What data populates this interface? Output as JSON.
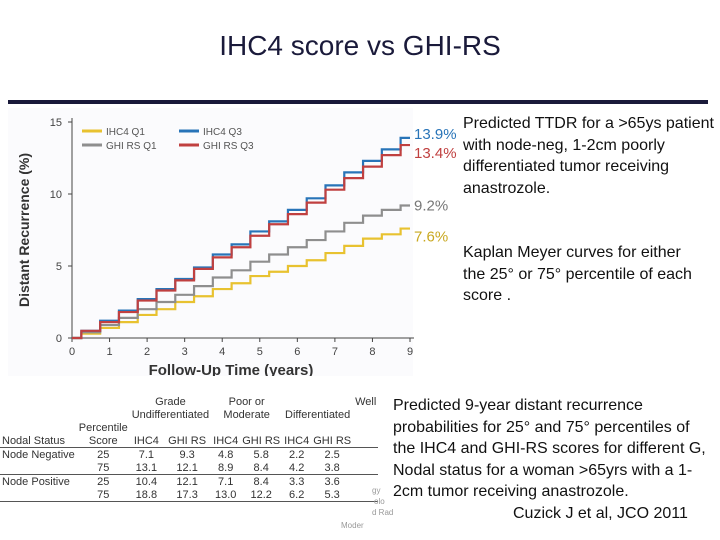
{
  "slide": {
    "title": "IHC4 score vs GHI-RS",
    "predicted_text": "Predicted TTDR for a >65ys patient with node-neg, 1-2cm poorly differentiated tumor receiving anastrozole.",
    "kaplan_text": "Kaplan Meyer curves for either the 25° or 75° percentile of each score .",
    "bottom_text": "Predicted 9-year distant recurrence probabilities for 25° and 75° percentiles of the IHC4 and GHI-RS scores for different G, Nodal status for a woman >65yrs with a 1-2cm tumor receiving anastrozole.",
    "citation": "Cuzick J et al, JCO 2011"
  },
  "chart_data": {
    "type": "line",
    "xlabel": "Follow-Up Time (years)",
    "ylabel": "Distant Recurrence (%)",
    "xlim": [
      0,
      9
    ],
    "ylim": [
      0,
      15
    ],
    "xticks": [
      0,
      1,
      2,
      3,
      4,
      5,
      6,
      7,
      8,
      9
    ],
    "yticks": [
      0,
      5,
      10,
      15
    ],
    "legend": {
      "placement": "top-left"
    },
    "series": [
      {
        "name": "IHC4 Q1",
        "color": "#e8c230",
        "x": [
          0,
          0.5,
          1,
          1.5,
          2,
          2.5,
          3,
          3.5,
          4,
          4.5,
          5,
          5.5,
          6,
          6.5,
          7,
          7.5,
          8,
          8.5,
          9
        ],
        "y": [
          0,
          0.3,
          0.7,
          1.1,
          1.6,
          2.0,
          2.5,
          2.9,
          3.4,
          3.8,
          4.3,
          4.6,
          5.0,
          5.4,
          5.9,
          6.4,
          6.9,
          7.2,
          7.6
        ]
      },
      {
        "name": "GHI RS Q1",
        "color": "#8e8e8e",
        "x": [
          0,
          0.5,
          1,
          1.5,
          2,
          2.5,
          3,
          3.5,
          4,
          4.5,
          5,
          5.5,
          6,
          6.5,
          7,
          7.5,
          8,
          8.5,
          9
        ],
        "y": [
          0,
          0.4,
          0.9,
          1.4,
          2.0,
          2.5,
          3.0,
          3.6,
          4.2,
          4.7,
          5.3,
          5.8,
          6.3,
          6.8,
          7.4,
          8.0,
          8.5,
          8.9,
          9.2
        ]
      },
      {
        "name": "IHC4 Q3",
        "color": "#2874b8",
        "x": [
          0,
          0.5,
          1,
          1.5,
          2,
          2.5,
          3,
          3.5,
          4,
          4.5,
          5,
          5.5,
          6,
          6.5,
          7,
          7.5,
          8,
          8.5,
          9
        ],
        "y": [
          0,
          0.5,
          1.2,
          1.9,
          2.7,
          3.4,
          4.1,
          4.9,
          5.8,
          6.5,
          7.4,
          8.1,
          8.9,
          9.7,
          10.6,
          11.5,
          12.3,
          13.1,
          13.9
        ]
      },
      {
        "name": "GHI RS Q3",
        "color": "#c04040",
        "x": [
          0,
          0.5,
          1,
          1.5,
          2,
          2.5,
          3,
          3.5,
          4,
          4.5,
          5,
          5.5,
          6,
          6.5,
          7,
          7.5,
          8,
          8.5,
          9
        ],
        "y": [
          0,
          0.5,
          1.1,
          1.8,
          2.6,
          3.3,
          4.0,
          4.8,
          5.6,
          6.3,
          7.1,
          7.9,
          8.6,
          9.4,
          10.3,
          11.1,
          11.9,
          12.7,
          13.4
        ]
      }
    ],
    "end_labels": [
      {
        "text": "13.9%",
        "color": "#2874b8",
        "y": 13.9
      },
      {
        "text": "13.4%",
        "color": "#c04040",
        "y": 13.4
      },
      {
        "text": "9.2%",
        "color": "#777777",
        "y": 9.2
      },
      {
        "text": "7.6%",
        "color": "#c9a820",
        "y": 7.6
      }
    ]
  },
  "table": {
    "header": {
      "grade": "Grade",
      "poor": [
        "Poor or",
        "Undifferentiated"
      ],
      "moderate": "Moderate",
      "well": [
        "Well",
        "Differentiated"
      ],
      "percentile": [
        "Percentile",
        "Score"
      ],
      "nodal": "Nodal Status",
      "cols": [
        "IHC4",
        "GHI RS",
        "IHC4",
        "GHI RS",
        "IHC4",
        "GHI RS"
      ]
    },
    "groups": [
      {
        "label": "Node Negative",
        "rows": [
          {
            "pct": "25",
            "vals": [
              "7.1",
              "9.3",
              "4.8",
              "5.8",
              "2.2",
              "2.5"
            ]
          },
          {
            "pct": "75",
            "vals": [
              "13.1",
              "12.1",
              "8.9",
              "8.4",
              "4.2",
              "3.8"
            ]
          }
        ]
      },
      {
        "label": "Node Positive",
        "rows": [
          {
            "pct": "25",
            "vals": [
              "10.4",
              "12.1",
              "7.1",
              "8.4",
              "3.3",
              "3.6"
            ]
          },
          {
            "pct": "75",
            "vals": [
              "18.8",
              "17.3",
              "13.0",
              "12.2",
              "6.2",
              "5.3"
            ]
          }
        ]
      }
    ],
    "faded_notes": [
      "gy",
      "olo",
      "d Rad",
      "Moder"
    ]
  }
}
